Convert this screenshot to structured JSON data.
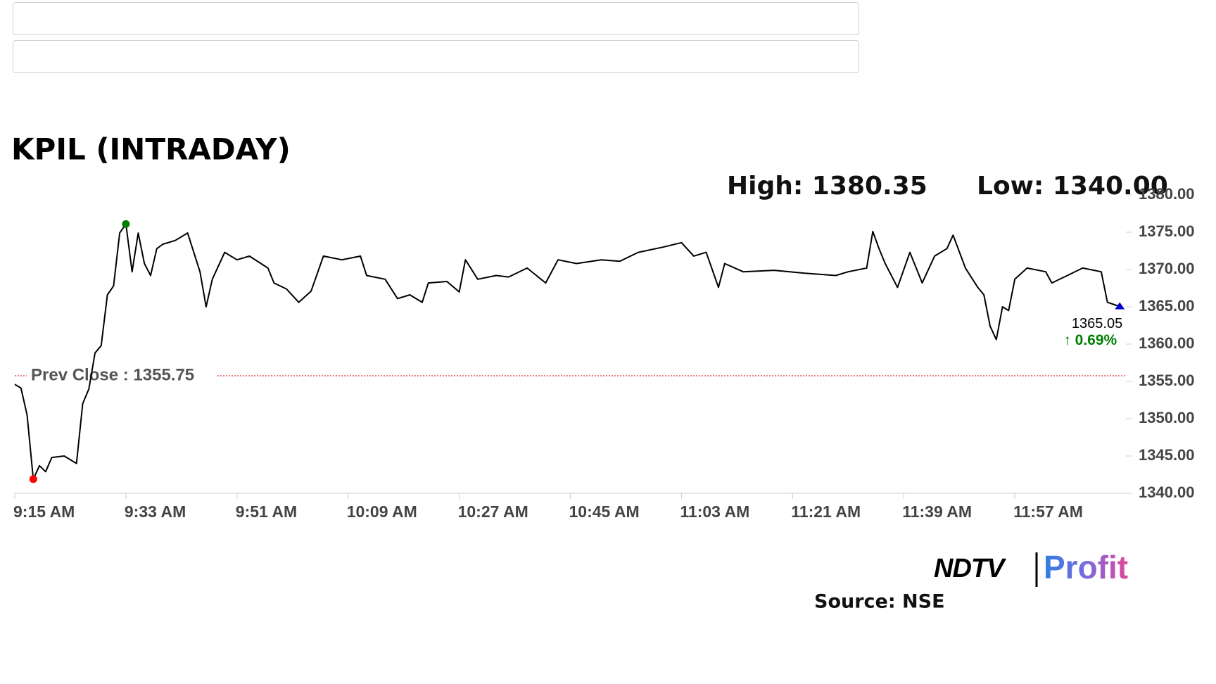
{
  "chart_data": {
    "type": "line",
    "title": "KPIL (INTRADAY)",
    "high_text": "High: 1380.35",
    "low_text": "Low: 1340.00",
    "prev_close": {
      "value": 1355.75,
      "label": "Prev Close : 1355.75"
    },
    "last_price": 1365.05,
    "change_label": "↑ 0.69%",
    "source": "Source: NSE",
    "logo": {
      "left": "NDTV",
      "right": "Profit"
    },
    "x": [
      "9:15 AM",
      "9:16 AM",
      "9:17 AM",
      "9:18 AM",
      "9:19 AM",
      "9:20 AM",
      "9:21 AM",
      "9:23 AM",
      "9:25 AM",
      "9:26 AM",
      "9:27 AM",
      "9:28 AM",
      "9:29 AM",
      "9:30 AM",
      "9:31 AM",
      "9:32 AM",
      "9:33 AM",
      "9:34 AM",
      "9:35 AM",
      "9:36 AM",
      "9:37 AM",
      "9:38 AM",
      "9:39 AM",
      "9:41 AM",
      "9:43 AM",
      "9:45 AM",
      "9:46 AM",
      "9:47 AM",
      "9:49 AM",
      "9:51 AM",
      "9:53 AM",
      "9:56 AM",
      "9:57 AM",
      "9:59 AM",
      "10:01 AM",
      "10:03 AM",
      "10:05 AM",
      "10:08 AM",
      "10:11 AM",
      "10:12 AM",
      "10:15 AM",
      "10:17 AM",
      "10:19 AM",
      "10:21 AM",
      "10:22 AM",
      "10:25 AM",
      "10:27 AM",
      "10:28 AM",
      "10:30 AM",
      "10:33 AM",
      "10:35 AM",
      "10:38 AM",
      "10:41 AM",
      "10:43 AM",
      "10:46 AM",
      "10:50 AM",
      "10:53 AM",
      "10:56 AM",
      "11:00 AM",
      "11:03 AM",
      "11:05 AM",
      "11:07 AM",
      "11:09 AM",
      "11:10 AM",
      "11:13 AM",
      "11:18 AM",
      "11:23 AM",
      "11:28 AM",
      "11:30 AM",
      "11:33 AM",
      "11:34 AM",
      "11:35 AM",
      "11:36 AM",
      "11:38 AM",
      "11:40 AM",
      "11:42 AM",
      "11:44 AM",
      "11:46 AM",
      "11:47 AM",
      "11:49 AM",
      "11:51 AM",
      "11:52 AM",
      "11:53 AM",
      "11:54 AM",
      "11:55 AM",
      "11:56 AM",
      "11:57 AM",
      "11:59 AM",
      "12:02 PM",
      "12:03 PM",
      "12:05 PM",
      "12:08 PM",
      "12:11 PM",
      "12:12 PM",
      "12:14 PM"
    ],
    "series": [
      {
        "name": "KPIL",
        "color": "#000000",
        "values": [
          1354.6,
          1354.1,
          1350.5,
          1341.9,
          1343.7,
          1342.9,
          1344.8,
          1345,
          1344,
          1352,
          1354,
          1358.8,
          1359.8,
          1366.6,
          1367.8,
          1374.9,
          1376.1,
          1369.7,
          1374.9,
          1370.8,
          1369.2,
          1372.8,
          1373.4,
          1373.9,
          1374.9,
          1369.7,
          1365,
          1368.7,
          1372.3,
          1371.3,
          1371.8,
          1370.2,
          1368.2,
          1367.4,
          1365.6,
          1367.1,
          1371.8,
          1371.3,
          1371.8,
          1369.2,
          1368.7,
          1366.1,
          1366.6,
          1365.6,
          1368.2,
          1368.4,
          1367,
          1371.3,
          1368.7,
          1369.2,
          1369,
          1370.2,
          1368.2,
          1371.3,
          1370.8,
          1371.3,
          1371.1,
          1372.3,
          1373,
          1373.6,
          1371.8,
          1372.3,
          1367.6,
          1370.8,
          1369.7,
          1369.9,
          1369.5,
          1369.2,
          1369.7,
          1370.2,
          1375.1,
          1372.8,
          1370.8,
          1367.6,
          1372.3,
          1368.2,
          1371.8,
          1372.8,
          1374.6,
          1370.2,
          1367.6,
          1366.6,
          1362.4,
          1360.6,
          1365,
          1364.5,
          1368.7,
          1370.2,
          1369.7,
          1368.2,
          1369,
          1370.2,
          1369.7,
          1365.6,
          1365.05
        ]
      }
    ],
    "high_color": "#008000",
    "low_color": "#ff0000",
    "last_color": "#0000cc",
    "prev_close_color": "#cc0000",
    "change_color": "#008000",
    "xlim": [
      "9:15 AM",
      "12:15 PM"
    ],
    "xticks": [
      "9:15 AM",
      "9:33 AM",
      "9:51 AM",
      "10:09 AM",
      "10:27 AM",
      "10:45 AM",
      "11:03 AM",
      "11:21 AM",
      "11:39 AM",
      "11:57 AM"
    ],
    "ylim": [
      1340,
      1380
    ],
    "yticks": [
      {
        "value": 1340,
        "label": "1340.00"
      },
      {
        "value": 1345,
        "label": "1345.00"
      },
      {
        "value": 1350,
        "label": "1350.00"
      },
      {
        "value": 1355,
        "label": "1355.00"
      },
      {
        "value": 1360,
        "label": "1360.00"
      },
      {
        "value": 1365,
        "label": "1365.00"
      },
      {
        "value": 1370,
        "label": "1370.00"
      },
      {
        "value": 1375,
        "label": "1375.00"
      },
      {
        "value": 1380,
        "label": "1380.00"
      }
    ],
    "grid": false
  }
}
